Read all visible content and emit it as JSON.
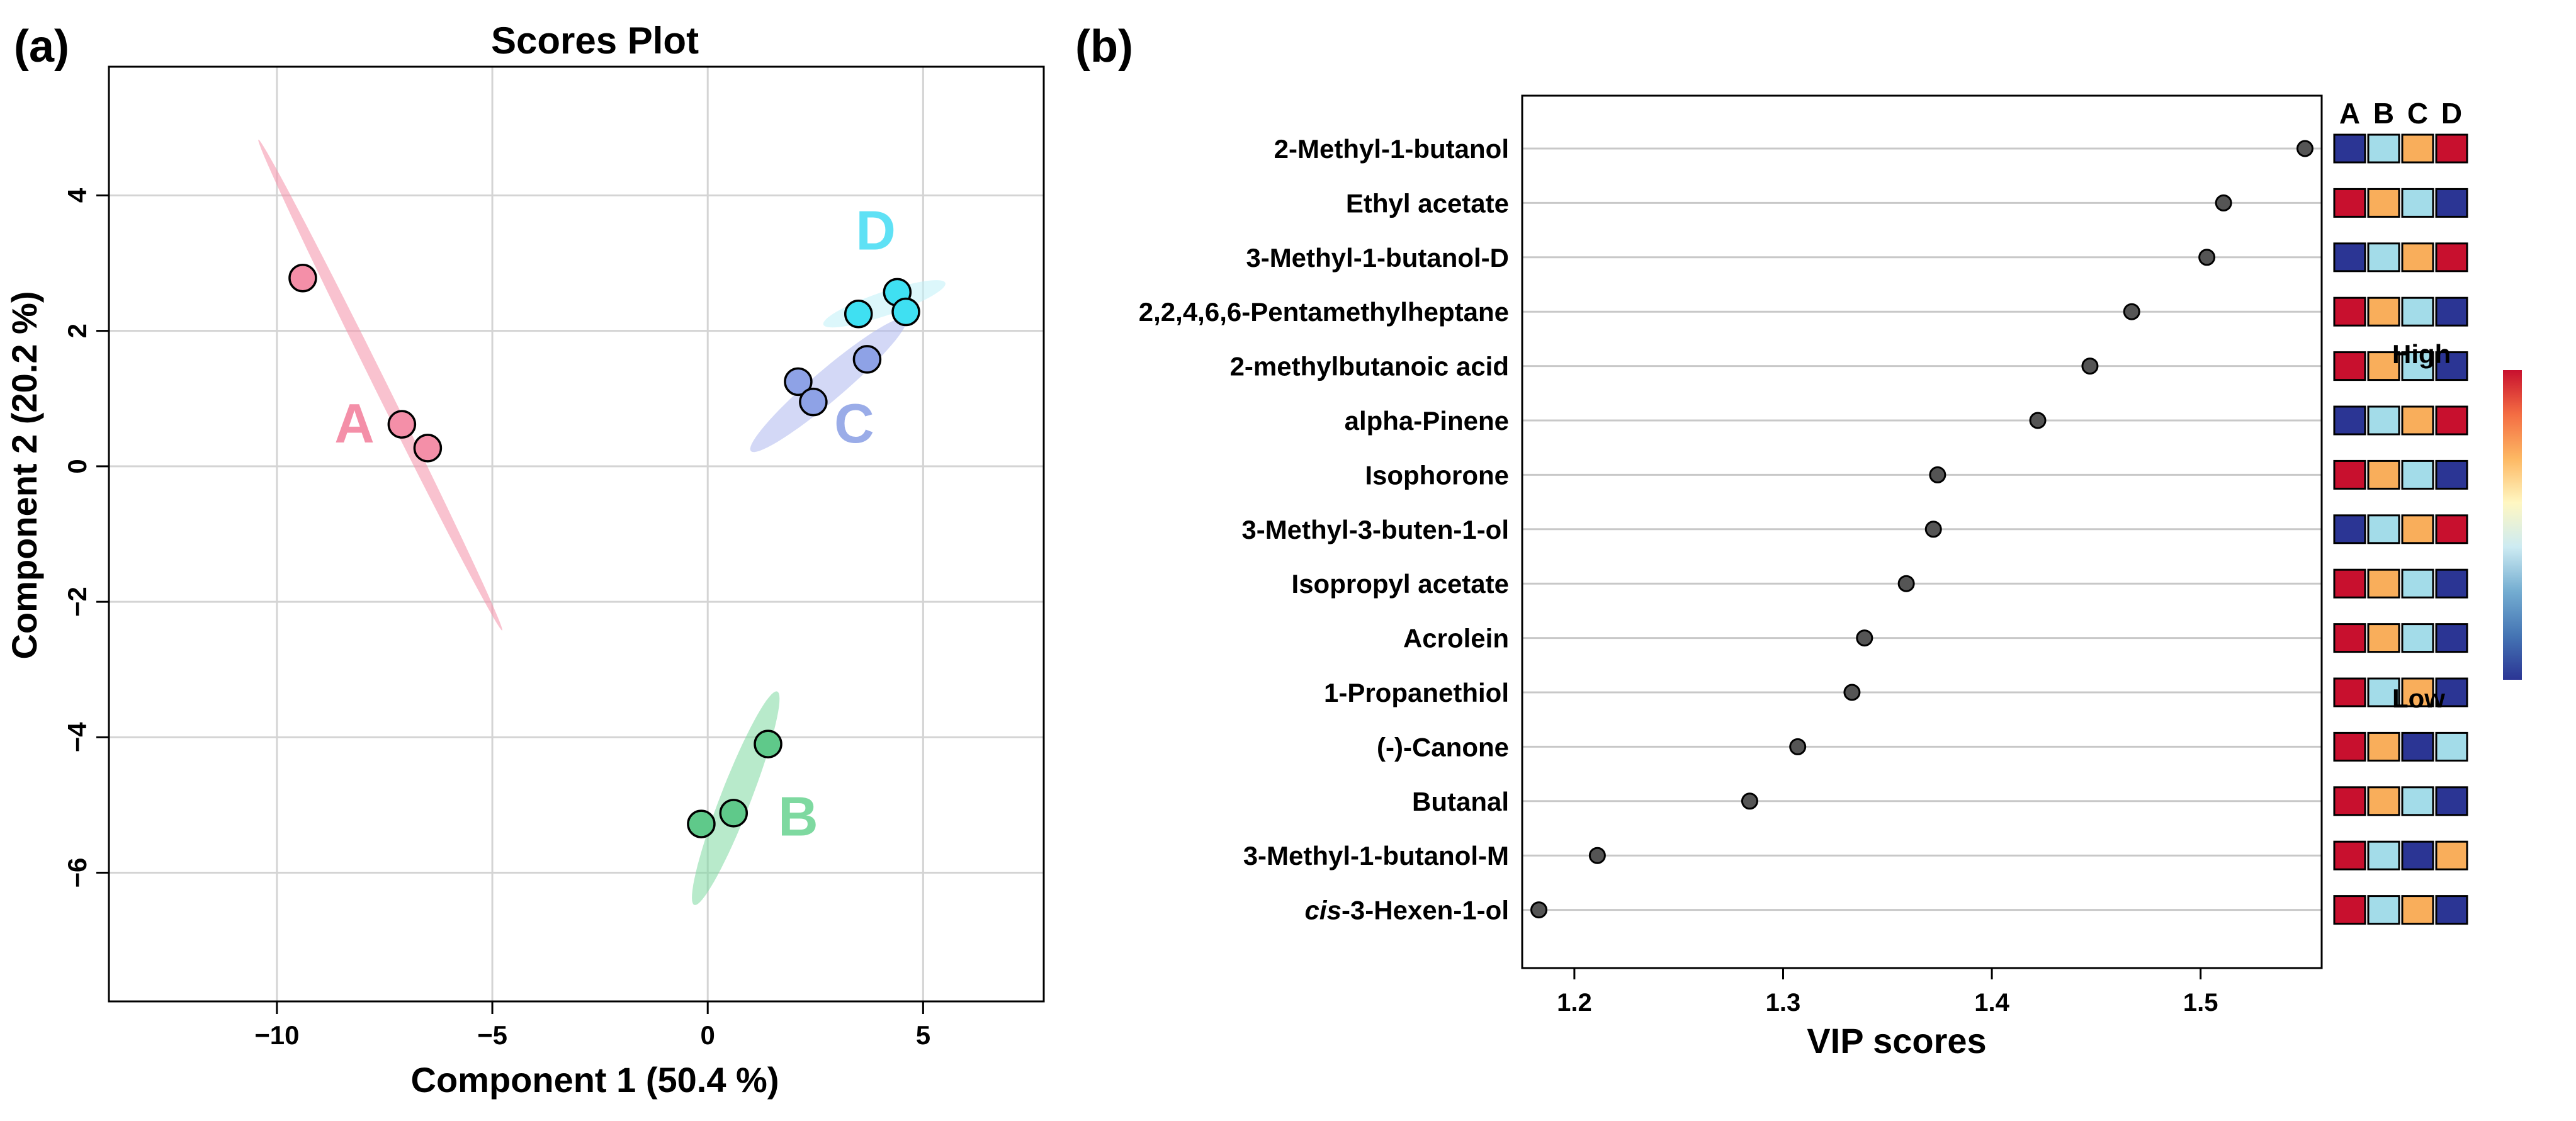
{
  "panels": {
    "a_label": "(a)",
    "b_label": "(b)"
  },
  "chart_data": [
    {
      "type": "scatter",
      "title": "Scores Plot",
      "xlabel": "Component 1 (50.4 %)",
      "ylabel": "Component 2 (20.2 %)",
      "xlim": [
        -13.9,
        7.8
      ],
      "ylim": [
        -7.9,
        5.9
      ],
      "xticks": [
        -10,
        -5,
        0,
        5
      ],
      "yticks": [
        -6,
        -4,
        -2,
        0,
        2,
        4
      ],
      "xtick_labels": [
        "−10",
        "−5",
        "0",
        "5"
      ],
      "ytick_labels": [
        "−6",
        "−4",
        "−2",
        "0",
        "2",
        "4"
      ],
      "grid": true,
      "groups": [
        {
          "name": "A",
          "color": "#F48FA8",
          "point_color": "#F48FA8",
          "label_color": "#F48FA8",
          "points": [
            [
              -9.4,
              2.78
            ],
            [
              -7.1,
              0.62
            ],
            [
              -6.5,
              0.27
            ]
          ],
          "ellipse": {
            "center": [
              -7.6,
              1.2
            ],
            "semi_major": 4.6,
            "semi_minor": 0.13,
            "angle_deg": -52
          },
          "label_pos": [
            -8.2,
            0.35
          ]
        },
        {
          "name": "B",
          "color": "#7ED9A0",
          "point_color": "#5FC98A",
          "label_color": "#7ED9A0",
          "points": [
            [
              1.4,
              -4.1
            ],
            [
              0.6,
              -5.12
            ],
            [
              -0.15,
              -5.28
            ]
          ],
          "ellipse": {
            "center": [
              0.65,
              -4.9
            ],
            "semi_major": 1.85,
            "semi_minor": 0.32,
            "angle_deg": 58
          },
          "label_pos": [
            2.1,
            -5.45
          ]
        },
        {
          "name": "C",
          "color": "#AEB8EE",
          "point_color": "#8EA2E6",
          "label_color": "#9AACE8",
          "points": [
            [
              2.1,
              1.25
            ],
            [
              2.45,
              0.95
            ],
            [
              3.7,
              1.58
            ]
          ],
          "ellipse": {
            "center": [
              2.8,
              1.2
            ],
            "semi_major": 2.05,
            "semi_minor": 0.26,
            "angle_deg": 28
          },
          "label_pos": [
            3.4,
            0.35
          ]
        },
        {
          "name": "D",
          "color": "#BFF0F8",
          "point_color": "#3FE0F2",
          "label_color": "#5FE1F5",
          "points": [
            [
              3.5,
              2.25
            ],
            [
              4.4,
              2.57
            ],
            [
              4.6,
              2.28
            ]
          ],
          "ellipse": {
            "center": [
              4.1,
              2.4
            ],
            "semi_major": 1.45,
            "semi_minor": 0.18,
            "angle_deg": 12
          },
          "label_pos": [
            3.9,
            3.2
          ]
        }
      ]
    },
    {
      "type": "dot",
      "xlabel": "VIP scores",
      "xlim": [
        1.175,
        1.558
      ],
      "xticks": [
        1.2,
        1.3,
        1.4,
        1.5
      ],
      "xtick_labels": [
        "1.2",
        "1.3",
        "1.4",
        "1.5"
      ],
      "features": [
        {
          "name": "2-Methyl-1-butanol",
          "vip": 1.55,
          "levels": [
            "low",
            "midlow",
            "midhigh",
            "high"
          ]
        },
        {
          "name": "Ethyl acetate",
          "vip": 1.511,
          "levels": [
            "high",
            "midhigh",
            "midlow",
            "low"
          ]
        },
        {
          "name": "3-Methyl-1-butanol-D",
          "vip": 1.503,
          "levels": [
            "low",
            "midlow",
            "midhigh",
            "high"
          ]
        },
        {
          "name": "2,2,4,6,6-Pentamethylheptane",
          "vip": 1.467,
          "levels": [
            "high",
            "midhigh",
            "midlow",
            "low"
          ]
        },
        {
          "name": "2-methylbutanoic acid",
          "vip": 1.447,
          "levels": [
            "high",
            "midhigh",
            "midlow",
            "low"
          ]
        },
        {
          "name": "alpha-Pinene",
          "vip": 1.422,
          "levels": [
            "low",
            "midlow",
            "midhigh",
            "high"
          ]
        },
        {
          "name": "Isophorone",
          "vip": 1.374,
          "levels": [
            "high",
            "midhigh",
            "midlow",
            "low"
          ]
        },
        {
          "name": "3-Methyl-3-buten-1-ol",
          "vip": 1.372,
          "levels": [
            "low",
            "midlow",
            "midhigh",
            "high"
          ]
        },
        {
          "name": "Isopropyl acetate",
          "vip": 1.359,
          "levels": [
            "high",
            "midhigh",
            "midlow",
            "low"
          ]
        },
        {
          "name": "Acrolein",
          "vip": 1.339,
          "levels": [
            "high",
            "midhigh",
            "midlow",
            "low"
          ]
        },
        {
          "name": "1-Propanethiol",
          "vip": 1.333,
          "levels": [
            "high",
            "midlow",
            "midhigh",
            "low"
          ]
        },
        {
          "name": "(-)-Canone",
          "vip": 1.307,
          "levels": [
            "high",
            "midhigh",
            "low",
            "midlow"
          ]
        },
        {
          "name": "Butanal",
          "vip": 1.284,
          "levels": [
            "high",
            "midhigh",
            "midlow",
            "low"
          ]
        },
        {
          "name": "3-Methyl-1-butanol-M",
          "vip": 1.211,
          "levels": [
            "high",
            "midlow",
            "low",
            "midhigh"
          ]
        },
        {
          "name": "cis-3-Hexen-1-ol",
          "name_italic_prefix": "cis",
          "name_rest": "-3-Hexen-1-ol",
          "vip": 1.183,
          "levels": [
            "high",
            "midlow",
            "midhigh",
            "low"
          ]
        }
      ],
      "heatmap_columns": [
        "A",
        "B",
        "C",
        "D"
      ],
      "level_colors": {
        "high": "#C8102E",
        "midhigh": "#F9AE5B",
        "midlow": "#A3DCE9",
        "low": "#2B3594"
      },
      "colorbar": {
        "high_label": "High",
        "low_label": "Low",
        "stops": [
          "#C8102E",
          "#F46D43",
          "#FDB863",
          "#FFF7C2",
          "#CDEBF2",
          "#74ADD1",
          "#4575B4",
          "#2B3594"
        ]
      }
    }
  ]
}
